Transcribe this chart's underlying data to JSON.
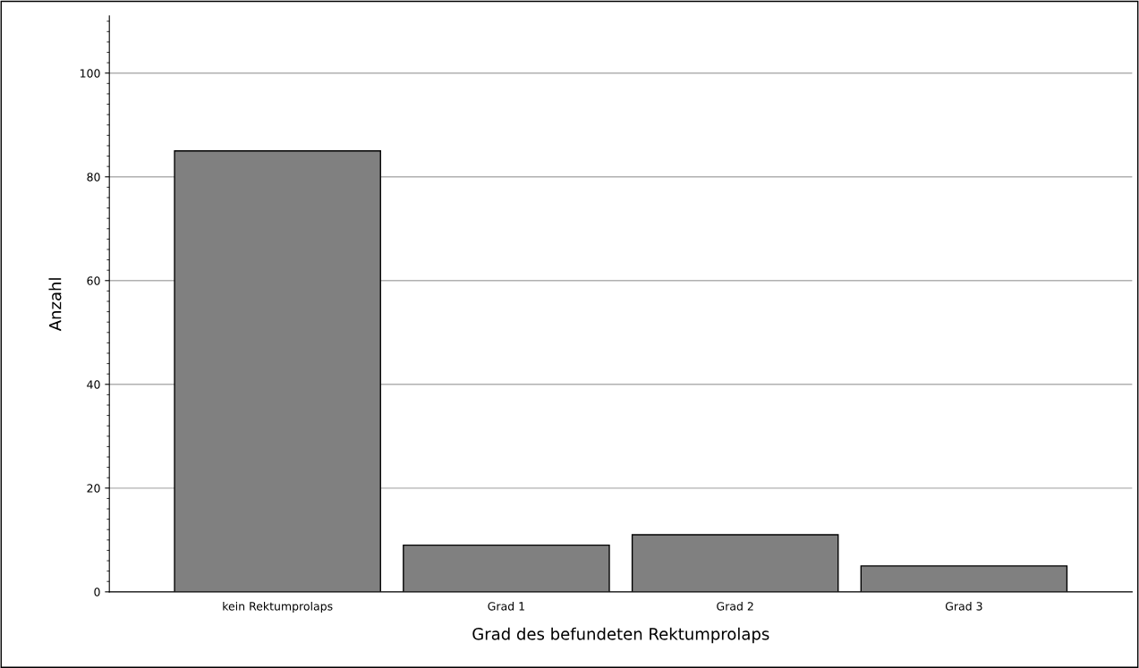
{
  "chart_data": {
    "type": "bar",
    "xlabel": "Grad des befundeten Rektumprolaps",
    "ylabel": "Anzahl",
    "categories": [
      "kein Rektumprolaps",
      "Grad 1",
      "Grad 2",
      "Grad 3"
    ],
    "values": [
      85,
      9,
      11,
      5
    ],
    "color": "#808080",
    "ylim": [
      0,
      111
    ],
    "yticks": [
      0,
      20,
      40,
      60,
      80,
      100
    ],
    "grid": "y"
  }
}
